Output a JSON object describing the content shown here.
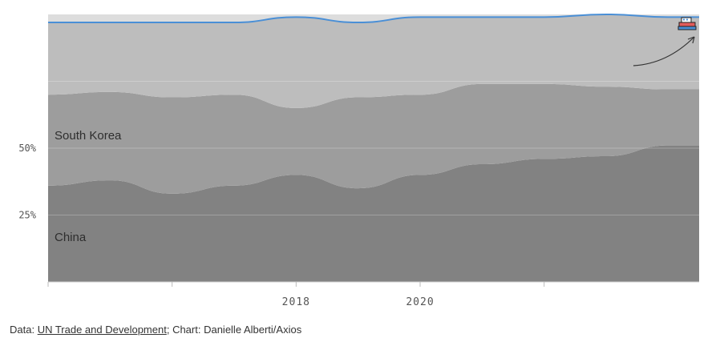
{
  "chart_data": {
    "type": "area",
    "stacked": true,
    "x": [
      2014,
      2015,
      2016,
      2017,
      2018,
      2019,
      2020,
      2021,
      2022,
      2023,
      2024
    ],
    "series": [
      {
        "name": "China",
        "values": [
          36,
          38,
          33,
          36,
          40,
          35,
          40,
          44,
          46,
          47,
          51
        ],
        "color": "#828282"
      },
      {
        "name": "South Korea",
        "values": [
          34,
          33,
          36,
          34,
          25,
          34,
          30,
          30,
          28,
          26,
          21
        ],
        "color": "#9d9d9d"
      },
      {
        "name": "",
        "values": [
          27,
          26,
          28,
          27,
          34,
          28,
          29,
          25,
          25,
          27,
          27
        ],
        "color": "#bdbdbd"
      },
      {
        "name": "",
        "values": [
          3,
          3,
          3,
          3,
          1,
          3,
          1,
          1,
          1,
          0,
          1
        ],
        "color": "#dddddd"
      }
    ],
    "highlight_line_color": "#4a8fd6",
    "x_ticks": [
      2014,
      2016,
      2018,
      2020,
      2022
    ],
    "x_tick_labels": [
      "",
      "",
      "2018",
      "2020",
      ""
    ],
    "y_ticks": [
      25,
      50
    ],
    "y_tick_labels": [
      "25%",
      "50%"
    ],
    "ylim": [
      0,
      100
    ],
    "xlim": [
      2014,
      2024.5
    ],
    "grid": true,
    "annotation_icon": "ship-icon",
    "arrow_annotation": true
  },
  "labels": {
    "china": "China",
    "south_korea": "South Korea"
  },
  "footer": {
    "prefix": "Data: ",
    "source_link": "UN Trade and Development",
    "suffix": "; Chart: Danielle Alberti/Axios"
  }
}
